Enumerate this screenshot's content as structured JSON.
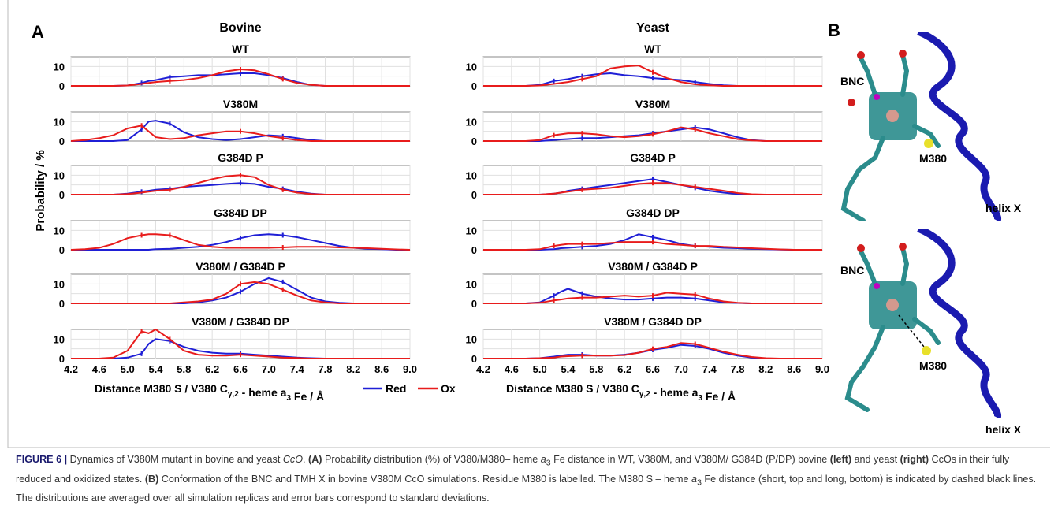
{
  "panel_a_label": "A",
  "panel_b_label": "B",
  "column_titles": [
    "Bovine",
    "Yeast"
  ],
  "ylabel": "Probability / %",
  "xlabel_prefix": "Distance M380 S / V380 C",
  "xlabel_sub": "γ,2",
  "xlabel_suffix": " - heme a",
  "xlabel_sub2": "3",
  "xlabel_tail": " Fe / Å",
  "legend": [
    {
      "name": "Red",
      "color": "#1f1fd6"
    },
    {
      "name": "Ox",
      "color": "#e81c1c"
    }
  ],
  "chart_data": {
    "type": "line",
    "x_ticks": [
      "4.2",
      "4.6",
      "5.0",
      "5.4",
      "5.8",
      "6.2",
      "6.6",
      "7.0",
      "7.4",
      "7.8",
      "8.2",
      "8.6",
      "9.0"
    ],
    "xlim": [
      4.2,
      9.0
    ],
    "y_ticks": [
      "0",
      "10"
    ],
    "ylim": [
      0,
      15
    ],
    "rows": [
      "WT",
      "V380M",
      "G384D P",
      "G384D DP",
      "V380M / G384D P",
      "V380M / G384D DP"
    ],
    "x": [
      4.2,
      4.4,
      4.6,
      4.8,
      5.0,
      5.2,
      5.3,
      5.4,
      5.6,
      5.8,
      6.0,
      6.2,
      6.4,
      6.6,
      6.8,
      7.0,
      7.2,
      7.4,
      7.6,
      7.8,
      8.0,
      8.2,
      8.4,
      8.6,
      8.8,
      9.0
    ],
    "panels": {
      "Bovine": [
        {
          "title": "WT",
          "red": [
            0,
            0,
            0,
            0,
            0.2,
            1.5,
            2.5,
            3,
            4.5,
            5,
            5.5,
            5.5,
            6,
            6.5,
            6.5,
            5.5,
            4,
            2,
            0.5,
            0,
            0,
            0,
            0,
            0,
            0,
            0
          ],
          "ox": [
            0,
            0,
            0,
            0,
            0.2,
            1,
            1.5,
            2,
            2.5,
            3,
            4,
            5.5,
            7.5,
            8.5,
            8,
            6,
            3.5,
            1.5,
            0.5,
            0,
            0,
            0,
            0,
            0,
            0,
            0
          ]
        },
        {
          "title": "V380M",
          "red": [
            0,
            0,
            0,
            0,
            0.5,
            6,
            10,
            10.5,
            9,
            4.5,
            2,
            1,
            0.5,
            1,
            2,
            3,
            2.5,
            1.5,
            0.5,
            0,
            0,
            0,
            0,
            0,
            0,
            0
          ],
          "ox": [
            0,
            0.5,
            1.5,
            3,
            6.5,
            8,
            5,
            2,
            1,
            1.5,
            3,
            4,
            5,
            5,
            4,
            2.5,
            1.5,
            0.5,
            0,
            0,
            0,
            0,
            0,
            0,
            0,
            0
          ]
        },
        {
          "title": "G384D P",
          "red": [
            0,
            0,
            0,
            0,
            0.5,
            1.5,
            2,
            2.5,
            3,
            4,
            4.5,
            5,
            5.5,
            6,
            5.5,
            4,
            3,
            1.5,
            0.5,
            0,
            0,
            0,
            0,
            0,
            0,
            0
          ],
          "ox": [
            0,
            0,
            0,
            0,
            0.3,
            1,
            1.5,
            2,
            2.5,
            4,
            6,
            8,
            9.5,
            10,
            9,
            5,
            2.5,
            1,
            0.3,
            0,
            0,
            0,
            0,
            0,
            0,
            0
          ]
        },
        {
          "title": "G384D DP",
          "red": [
            0,
            0,
            0,
            0,
            0,
            0,
            0,
            0.3,
            0.5,
            1,
            1.5,
            2.5,
            4,
            6,
            7.5,
            8,
            7.5,
            6.5,
            5,
            3.5,
            2,
            1,
            0.5,
            0.3,
            0,
            0
          ],
          "ox": [
            0,
            0.3,
            1,
            3,
            6,
            7.5,
            8,
            8,
            7.5,
            5,
            2.5,
            1.5,
            1,
            1,
            1,
            1,
            1.2,
            1.5,
            1.5,
            1.5,
            1.2,
            1,
            0.8,
            0.5,
            0.2,
            0
          ]
        },
        {
          "title": "V380M / G384D P",
          "red": [
            0,
            0,
            0,
            0,
            0,
            0,
            0,
            0,
            0,
            0,
            0.5,
            1.5,
            3,
            6,
            10,
            13,
            11,
            7,
            3,
            1,
            0.3,
            0,
            0,
            0,
            0,
            0
          ],
          "ox": [
            0,
            0,
            0,
            0,
            0,
            0,
            0,
            0,
            0,
            0.5,
            1,
            2,
            5,
            10,
            11,
            10,
            7,
            4,
            1.5,
            0.5,
            0,
            0,
            0,
            0,
            0,
            0
          ]
        },
        {
          "title": "V380M / G384D DP",
          "red": [
            0,
            0,
            0,
            0,
            0.5,
            2.5,
            7.5,
            10,
            9,
            6,
            4,
            3,
            2.5,
            2.5,
            2,
            1.5,
            1,
            0.5,
            0.2,
            0,
            0,
            0,
            0,
            0,
            0,
            0
          ],
          "ox": [
            0,
            0,
            0,
            0.5,
            4,
            14,
            13,
            15,
            10,
            4,
            2,
            1.5,
            1.5,
            2,
            1.5,
            1,
            0.5,
            0.3,
            0,
            0,
            0,
            0,
            0,
            0,
            0,
            0
          ]
        }
      ],
      "Yeast": [
        {
          "title": "WT",
          "red": [
            0,
            0,
            0,
            0,
            0.5,
            2.5,
            3,
            3.5,
            5,
            6,
            6.5,
            5.5,
            5,
            4,
            3.5,
            3,
            2,
            1,
            0.3,
            0,
            0,
            0,
            0,
            0,
            0,
            0
          ],
          "ox": [
            0,
            0,
            0,
            0,
            0.2,
            1,
            1.5,
            2,
            3.5,
            5,
            9,
            10,
            10.5,
            7,
            4,
            2,
            0.8,
            0.3,
            0,
            0,
            0,
            0,
            0,
            0,
            0,
            0
          ]
        },
        {
          "title": "V380M",
          "red": [
            0,
            0,
            0,
            0,
            0,
            0.5,
            0.8,
            1,
            1.5,
            1.5,
            2,
            2.5,
            3,
            4,
            5,
            6,
            7,
            6,
            4,
            2,
            0.5,
            0,
            0,
            0,
            0,
            0
          ],
          "ox": [
            0,
            0,
            0,
            0,
            0.5,
            3,
            3.5,
            4,
            4,
            3.5,
            2.5,
            2,
            2.5,
            3.5,
            5,
            7,
            6,
            4,
            2.5,
            1,
            0.3,
            0,
            0,
            0,
            0,
            0
          ]
        },
        {
          "title": "G384D P",
          "red": [
            0,
            0,
            0,
            0,
            0,
            0.5,
            1,
            2,
            3,
            4,
            5,
            6,
            7,
            8,
            6.5,
            5,
            3.5,
            2,
            1,
            0.3,
            0,
            0,
            0,
            0,
            0,
            0
          ],
          "ox": [
            0,
            0,
            0,
            0,
            0,
            0.5,
            1,
            1.5,
            2.5,
            3,
            3.5,
            4.5,
            5.5,
            6,
            6,
            5,
            4,
            3,
            2,
            0.8,
            0.2,
            0,
            0,
            0,
            0,
            0
          ]
        },
        {
          "title": "G384D DP",
          "red": [
            0,
            0,
            0,
            0,
            0,
            0.3,
            0.8,
            1,
            1.5,
            2,
            3,
            5,
            8,
            6.5,
            5,
            3,
            2,
            1.5,
            1,
            0.8,
            0.5,
            0.3,
            0.1,
            0,
            0,
            0
          ],
          "ox": [
            0,
            0,
            0,
            0,
            0.3,
            2,
            2.5,
            3,
            3,
            3,
            3.5,
            4,
            4,
            4,
            3,
            2.5,
            2,
            2,
            1.5,
            1.2,
            0.8,
            0.5,
            0.2,
            0,
            0,
            0
          ]
        },
        {
          "title": "V380M / G384D P",
          "red": [
            0,
            0,
            0,
            0,
            0.5,
            4,
            6,
            7.5,
            5,
            3.5,
            2.5,
            2,
            2,
            2.5,
            3,
            3,
            2.5,
            1.5,
            0.5,
            0.2,
            0,
            0,
            0,
            0,
            0,
            0
          ],
          "ox": [
            0,
            0,
            0,
            0,
            0.3,
            1.5,
            2,
            2.5,
            3,
            3,
            3.5,
            4,
            3.5,
            4,
            5.5,
            5,
            4.5,
            2.5,
            1,
            0.3,
            0,
            0,
            0,
            0,
            0,
            0
          ]
        },
        {
          "title": "V380M / G384D DP",
          "red": [
            0,
            0,
            0,
            0,
            0.2,
            1,
            1.5,
            2,
            2,
            1.5,
            1.5,
            2,
            3,
            4.5,
            5.5,
            7,
            6.5,
            5,
            3,
            1.5,
            0.5,
            0,
            0,
            0,
            0,
            0
          ],
          "ox": [
            0,
            0,
            0,
            0,
            0.2,
            0.5,
            1,
            1.2,
            1.5,
            1.5,
            1.5,
            1.8,
            3,
            5,
            6,
            8,
            7.5,
            5.5,
            3.5,
            2,
            0.8,
            0.2,
            0,
            0,
            0,
            0
          ]
        }
      ]
    }
  },
  "structure_labels": {
    "bnc": "BNC",
    "residue": "M380",
    "helix": "helix X"
  },
  "caption": {
    "lead": "FIGURE 6 |",
    "text1": " Dynamics of V380M mutant in bovine and yeast ",
    "cco1": "CcO",
    "text2": ". ",
    "a_label": "(A)",
    "text3": " Probability distribution (%) of V380/M380– heme ",
    "a3": "a",
    "a3_sub": "3",
    "text4": " Fe distance in WT, V380M, and V380M/ G384D (P/DP) bovine ",
    "left": "(left)",
    "text5": " and yeast ",
    "right": "(right)",
    "text6": " CcOs in their fully reduced and oxidized states. ",
    "b_label": "(B)",
    "text7": " Conformation of the BNC and TMH X in bovine V380M CcO simulations. Residue M380 is labelled. The M380 S – heme ",
    "text8": " Fe distance (short, top and long, bottom) is indicated by dashed black lines. The distributions are averaged over all simulation replicas and error bars correspond to standard deviations."
  }
}
